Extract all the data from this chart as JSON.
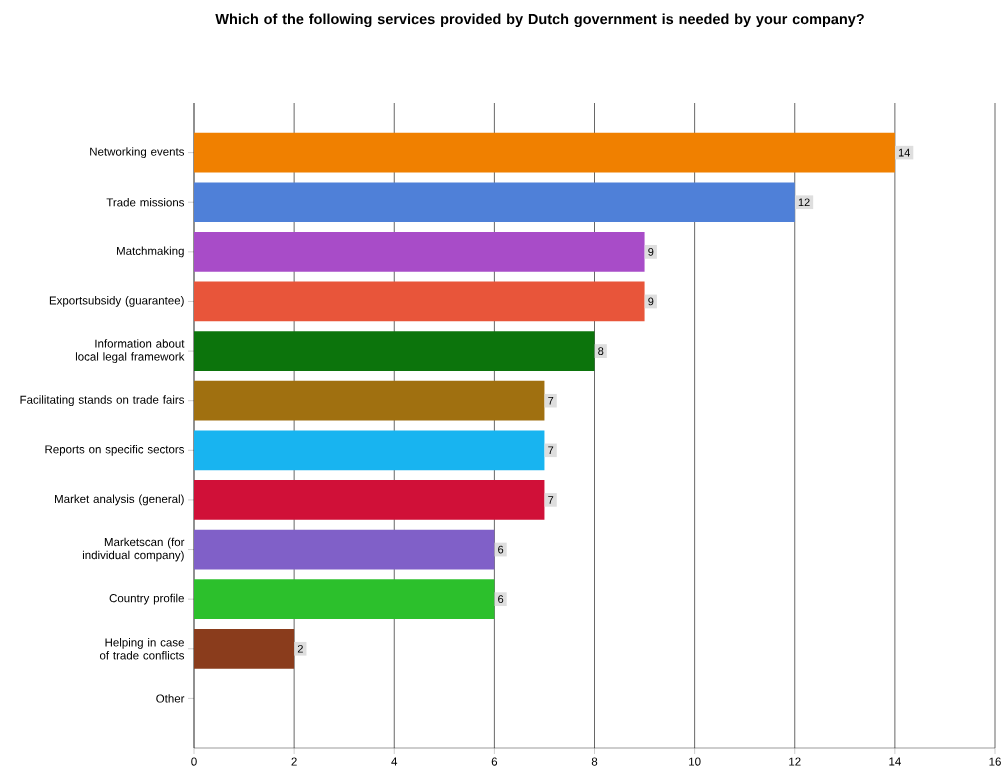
{
  "chart_data": {
    "type": "bar",
    "orientation": "horizontal",
    "title": "Which of the following services provided by Dutch government is needed by your company?",
    "categories": [
      "Networking events",
      "Trade missions",
      "Matchmaking",
      "Exportsubsidy (guarantee)",
      "Information about local legal framework",
      "Facilitating stands on trade fairs",
      "Reports on specific sectors",
      "Market analysis (general)",
      "Marketscan (for individual company)",
      "Country profile",
      "Helping in case of trade conflicts",
      "Other"
    ],
    "values": [
      14,
      12,
      9,
      9,
      8,
      7,
      7,
      7,
      6,
      6,
      2,
      0
    ],
    "value_labels": [
      "14",
      "12",
      "9",
      "9",
      "8",
      "7",
      "7",
      "7",
      "6",
      "6",
      "2",
      null
    ],
    "colors": [
      "#f08000",
      "#4f80d8",
      "#a84cc8",
      "#e8553a",
      "#0c740c",
      "#a07010",
      "#18b4f0",
      "#d01038",
      "#8060c8",
      "#2cc02c",
      "#8a3c1c",
      "#808080"
    ],
    "xlim": [
      0,
      16
    ],
    "xticks": [
      0,
      2,
      4,
      6,
      8,
      10,
      12,
      14,
      16
    ],
    "grid": "x"
  }
}
